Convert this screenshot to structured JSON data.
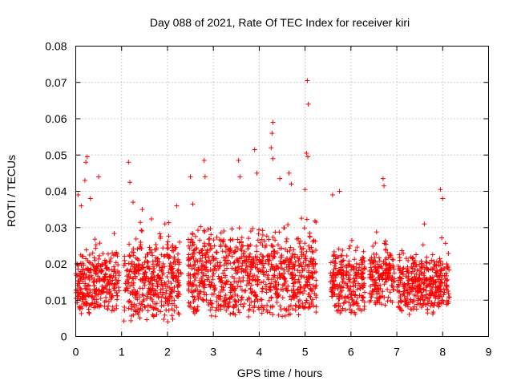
{
  "chart_data": {
    "type": "scatter",
    "title": "Day 088 of 2021, Rate Of TEC Index for receiver kiri",
    "xlabel": "GPS time / hours",
    "ylabel": "ROTI / TECUs",
    "xlim": [
      0,
      9
    ],
    "ylim": [
      0,
      0.08
    ],
    "x_ticks": [
      "0",
      "1",
      "2",
      "3",
      "4",
      "5",
      "6",
      "7",
      "8",
      "9"
    ],
    "y_ticks": [
      "0",
      "0.01",
      "0.02",
      "0.03",
      "0.04",
      "0.05",
      "0.06",
      "0.07",
      "0.08"
    ],
    "x_tick_values": [
      0,
      1,
      2,
      3,
      4,
      5,
      6,
      7,
      8,
      9
    ],
    "y_tick_values": [
      0,
      0.01,
      0.02,
      0.03,
      0.04,
      0.05,
      0.06,
      0.07,
      0.08
    ],
    "grid": true,
    "marker": "+",
    "marker_color": "#ff0000",
    "series": [
      {
        "name": "ROTI",
        "segments": [
          {
            "x_start": 0.0,
            "x_end": 0.95,
            "y_min": 0.006,
            "y_max": 0.03
          },
          {
            "x_start": 1.05,
            "x_end": 2.3,
            "y_min": 0.004,
            "y_max": 0.034
          },
          {
            "x_start": 2.45,
            "x_end": 5.25,
            "y_min": 0.005,
            "y_max": 0.036
          },
          {
            "x_start": 5.55,
            "x_end": 6.3,
            "y_min": 0.006,
            "y_max": 0.03
          },
          {
            "x_start": 6.4,
            "x_end": 6.95,
            "y_min": 0.008,
            "y_max": 0.03
          },
          {
            "x_start": 7.0,
            "x_end": 8.15,
            "y_min": 0.006,
            "y_max": 0.028
          }
        ],
        "outliers": [
          {
            "x": 0.05,
            "y": 0.039
          },
          {
            "x": 0.12,
            "y": 0.036
          },
          {
            "x": 0.22,
            "y": 0.048
          },
          {
            "x": 0.25,
            "y": 0.0495
          },
          {
            "x": 0.2,
            "y": 0.043
          },
          {
            "x": 0.32,
            "y": 0.038
          },
          {
            "x": 0.5,
            "y": 0.044
          },
          {
            "x": 1.15,
            "y": 0.048
          },
          {
            "x": 1.18,
            "y": 0.0425
          },
          {
            "x": 1.25,
            "y": 0.037
          },
          {
            "x": 1.45,
            "y": 0.035
          },
          {
            "x": 2.2,
            "y": 0.036
          },
          {
            "x": 2.5,
            "y": 0.044
          },
          {
            "x": 2.55,
            "y": 0.0365
          },
          {
            "x": 2.8,
            "y": 0.0485
          },
          {
            "x": 2.82,
            "y": 0.044
          },
          {
            "x": 3.55,
            "y": 0.0485
          },
          {
            "x": 3.58,
            "y": 0.044
          },
          {
            "x": 3.9,
            "y": 0.0515
          },
          {
            "x": 3.95,
            "y": 0.045
          },
          {
            "x": 4.3,
            "y": 0.059
          },
          {
            "x": 4.28,
            "y": 0.056
          },
          {
            "x": 4.26,
            "y": 0.052
          },
          {
            "x": 4.3,
            "y": 0.049
          },
          {
            "x": 4.45,
            "y": 0.0435
          },
          {
            "x": 4.65,
            "y": 0.045
          },
          {
            "x": 4.7,
            "y": 0.042
          },
          {
            "x": 5.05,
            "y": 0.0705
          },
          {
            "x": 5.07,
            "y": 0.064
          },
          {
            "x": 5.03,
            "y": 0.0505
          },
          {
            "x": 5.06,
            "y": 0.0495
          },
          {
            "x": 5.0,
            "y": 0.0405
          },
          {
            "x": 5.6,
            "y": 0.039
          },
          {
            "x": 5.75,
            "y": 0.04
          },
          {
            "x": 6.7,
            "y": 0.0435
          },
          {
            "x": 6.72,
            "y": 0.0415
          },
          {
            "x": 7.6,
            "y": 0.031
          },
          {
            "x": 7.95,
            "y": 0.0405
          },
          {
            "x": 8.0,
            "y": 0.038
          }
        ]
      }
    ]
  }
}
